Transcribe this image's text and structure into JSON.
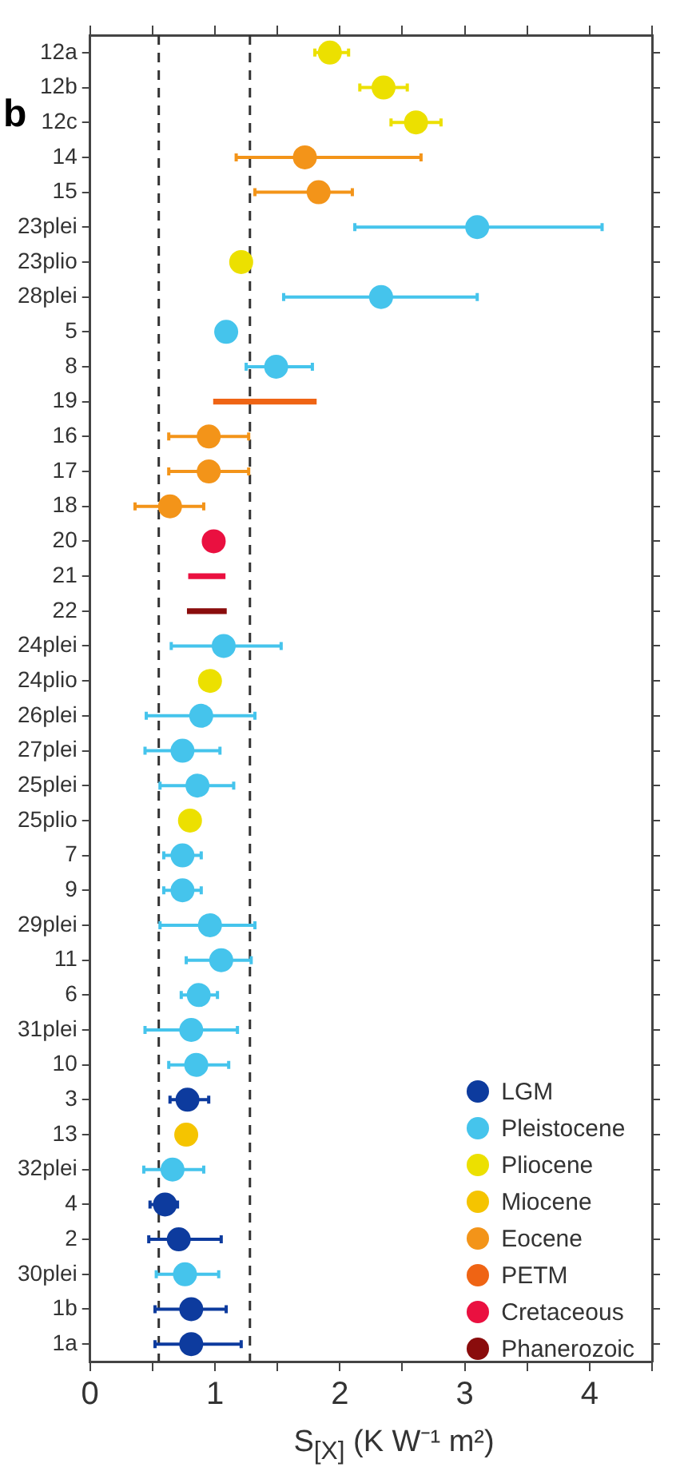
{
  "chart_data": {
    "type": "scatter",
    "orientation": "horizontal",
    "xlabel": "S$_{[X]}$ (K W⁻¹ m²)",
    "annotations": [
      "b"
    ],
    "categories": [
      "12a",
      "12b",
      "12c",
      "14",
      "15",
      "23plei",
      "23plio",
      "28plei",
      "5",
      "8",
      "19",
      "16",
      "17",
      "18",
      "20",
      "21",
      "22",
      "24plei",
      "24plio",
      "26plei",
      "27plei",
      "25plei",
      "25plio",
      "7",
      "9",
      "29plei",
      "11",
      "6",
      "31plei",
      "10",
      "3",
      "13",
      "32plei",
      "4",
      "2",
      "30plei",
      "1b",
      "1a"
    ],
    "xlim": [
      0,
      4.5
    ],
    "xticks": [
      0,
      {
        "value": 0.5,
        "label": null
      },
      1,
      {
        "value": 1.5,
        "label": null
      },
      2,
      {
        "value": 2.5,
        "label": null
      },
      3,
      {
        "value": 3.5,
        "label": null
      },
      4,
      {
        "value": 4.5,
        "label": null
      }
    ],
    "grid": false,
    "legend": "bottom right",
    "marker": "circle",
    "ref_lines": [
      {
        "axis": "x",
        "value": 0.55,
        "label": null,
        "color": "#333333",
        "line_style": "dashed"
      },
      {
        "axis": "x",
        "value": 1.28,
        "label": null,
        "color": "#333333",
        "line_style": "dashed"
      }
    ],
    "series": [
      {
        "name": "LGM",
        "color": "#0d3b9e",
        "values": [
          null,
          null,
          null,
          null,
          null,
          null,
          null,
          null,
          null,
          null,
          null,
          null,
          null,
          null,
          null,
          null,
          null,
          null,
          null,
          null,
          null,
          null,
          null,
          null,
          null,
          null,
          null,
          null,
          null,
          null,
          0.78,
          null,
          null,
          0.6,
          0.71,
          null,
          0.81,
          0.81
        ],
        "errors": [
          null,
          null,
          null,
          null,
          null,
          null,
          null,
          null,
          null,
          null,
          null,
          null,
          null,
          null,
          null,
          null,
          null,
          null,
          null,
          null,
          null,
          null,
          null,
          null,
          null,
          null,
          null,
          null,
          null,
          null,
          [
            0.64,
            0.95
          ],
          null,
          null,
          [
            0.48,
            0.7
          ],
          [
            0.47,
            1.05
          ],
          null,
          [
            0.52,
            1.09
          ],
          [
            0.52,
            1.21
          ]
        ]
      },
      {
        "name": "Pleistocene",
        "color": "#45c4ec",
        "values": [
          null,
          null,
          null,
          null,
          null,
          3.1,
          null,
          2.33,
          1.09,
          1.49,
          null,
          null,
          null,
          null,
          null,
          null,
          null,
          1.07,
          null,
          0.89,
          0.74,
          0.86,
          null,
          0.74,
          0.74,
          0.96,
          1.05,
          0.87,
          0.81,
          0.85,
          null,
          null,
          0.66,
          null,
          null,
          0.76,
          null,
          null
        ],
        "errors": [
          null,
          null,
          null,
          null,
          null,
          [
            2.12,
            4.1
          ],
          null,
          [
            1.55,
            3.1
          ],
          null,
          [
            1.25,
            1.78
          ],
          null,
          null,
          null,
          null,
          null,
          null,
          null,
          [
            0.65,
            1.53
          ],
          null,
          [
            0.45,
            1.32
          ],
          [
            0.44,
            1.04
          ],
          [
            0.56,
            1.15
          ],
          null,
          [
            0.59,
            0.89
          ],
          [
            0.59,
            0.89
          ],
          [
            0.56,
            1.32
          ],
          [
            0.77,
            1.29
          ],
          [
            0.73,
            1.02
          ],
          [
            0.44,
            1.18
          ],
          [
            0.63,
            1.11
          ],
          null,
          null,
          [
            0.43,
            0.91
          ],
          null,
          null,
          [
            0.53,
            1.03
          ],
          null,
          null
        ]
      },
      {
        "name": "Pliocene",
        "color": "#ece000",
        "values": [
          1.92,
          2.35,
          2.61,
          null,
          null,
          null,
          1.21,
          null,
          null,
          null,
          null,
          null,
          null,
          null,
          null,
          null,
          null,
          null,
          0.96,
          null,
          null,
          null,
          0.8,
          null,
          null,
          null,
          null,
          null,
          null,
          null,
          null,
          null,
          null,
          null,
          null,
          null,
          null,
          null
        ],
        "errors": [
          [
            1.8,
            2.07
          ],
          [
            2.16,
            2.54
          ],
          [
            2.41,
            2.81
          ],
          null,
          null,
          null,
          null,
          null,
          null,
          null,
          null,
          null,
          null,
          null,
          null,
          null,
          null,
          null,
          null,
          null,
          null,
          null,
          null,
          null,
          null,
          null,
          null,
          null,
          null,
          null,
          null,
          null,
          null,
          null,
          null,
          null,
          null,
          null
        ]
      },
      {
        "name": "Miocene",
        "color": "#f5c400",
        "values": [
          null,
          null,
          null,
          null,
          null,
          null,
          null,
          null,
          null,
          null,
          null,
          null,
          null,
          null,
          null,
          null,
          null,
          null,
          null,
          null,
          null,
          null,
          null,
          null,
          null,
          null,
          null,
          null,
          null,
          null,
          null,
          0.77,
          null,
          null,
          null,
          null,
          null,
          null
        ]
      },
      {
        "name": "Eocene",
        "color": "#f39419",
        "values": [
          null,
          null,
          null,
          1.72,
          1.83,
          null,
          null,
          null,
          null,
          null,
          null,
          0.95,
          0.95,
          0.64,
          null,
          null,
          null,
          null,
          null,
          null,
          null,
          null,
          null,
          null,
          null,
          null,
          null,
          null,
          null,
          null,
          null,
          null,
          null,
          null,
          null,
          null,
          null,
          null
        ],
        "errors": [
          null,
          null,
          null,
          [
            1.17,
            2.65
          ],
          [
            1.32,
            2.1
          ],
          null,
          null,
          null,
          null,
          null,
          null,
          [
            0.63,
            1.27
          ],
          [
            0.63,
            1.27
          ],
          [
            0.36,
            0.91
          ],
          null,
          null,
          null,
          null,
          null,
          null,
          null,
          null,
          null,
          null,
          null,
          null,
          null,
          null,
          null,
          null,
          null,
          null,
          null,
          null,
          null,
          null,
          null,
          null
        ]
      },
      {
        "name": "PETM",
        "type": "bar",
        "color": "#ef6414",
        "values": [
          null,
          null,
          null,
          null,
          null,
          null,
          null,
          null,
          null,
          null,
          0.82,
          null,
          null,
          null,
          null,
          null,
          null,
          null,
          null,
          null,
          null,
          null,
          null,
          null,
          null,
          null,
          null,
          null,
          null,
          null,
          null,
          null,
          null,
          null,
          null,
          null,
          null,
          null
        ],
        "base": [
          null,
          null,
          null,
          null,
          null,
          null,
          null,
          null,
          null,
          null,
          0.99,
          null,
          null,
          null,
          null,
          null,
          null,
          null,
          null,
          null,
          null,
          null,
          null,
          null,
          null,
          null,
          null,
          null,
          null,
          null,
          null,
          null,
          null,
          null,
          null,
          null,
          null,
          null
        ]
      },
      {
        "name": "Cretaceous",
        "color": "#ea1040",
        "values": [
          null,
          null,
          null,
          null,
          null,
          null,
          null,
          null,
          null,
          null,
          null,
          null,
          null,
          null,
          0.99,
          null,
          null,
          null,
          null,
          null,
          null,
          null,
          null,
          null,
          null,
          null,
          null,
          null,
          null,
          null,
          null,
          null,
          null,
          null,
          null,
          null,
          null,
          null
        ]
      },
      {
        "name": "Phanerozoic",
        "type": "bar",
        "color": "#8a0c0c",
        "values": [
          null,
          null,
          null,
          null,
          null,
          null,
          null,
          null,
          null,
          null,
          null,
          null,
          null,
          null,
          null,
          null,
          0.31,
          null,
          null,
          null,
          null,
          null,
          null,
          null,
          null,
          null,
          null,
          null,
          null,
          null,
          null,
          null,
          null,
          null,
          null,
          null,
          null,
          null
        ],
        "base": [
          null,
          null,
          null,
          null,
          null,
          null,
          null,
          null,
          null,
          null,
          null,
          null,
          null,
          null,
          null,
          null,
          0.78,
          null,
          null,
          null,
          null,
          null,
          null,
          null,
          null,
          null,
          null,
          null,
          null,
          null,
          null,
          null,
          null,
          null,
          null,
          null,
          null,
          null
        ]
      },
      {
        "type": "bar",
        "color": "#ea1040",
        "values": [
          null,
          null,
          null,
          null,
          null,
          null,
          null,
          null,
          null,
          null,
          null,
          null,
          null,
          null,
          null,
          0.29,
          null,
          null,
          null,
          null,
          null,
          null,
          null,
          null,
          null,
          null,
          null,
          null,
          null,
          null,
          null,
          null,
          null,
          null,
          null,
          null,
          null,
          null
        ],
        "base": [
          null,
          null,
          null,
          null,
          null,
          null,
          null,
          null,
          null,
          null,
          null,
          null,
          null,
          null,
          null,
          0.79,
          null,
          null,
          null,
          null,
          null,
          null,
          null,
          null,
          null,
          null,
          null,
          null,
          null,
          null,
          null,
          null,
          null,
          null,
          null,
          null,
          null,
          null
        ]
      }
    ]
  }
}
